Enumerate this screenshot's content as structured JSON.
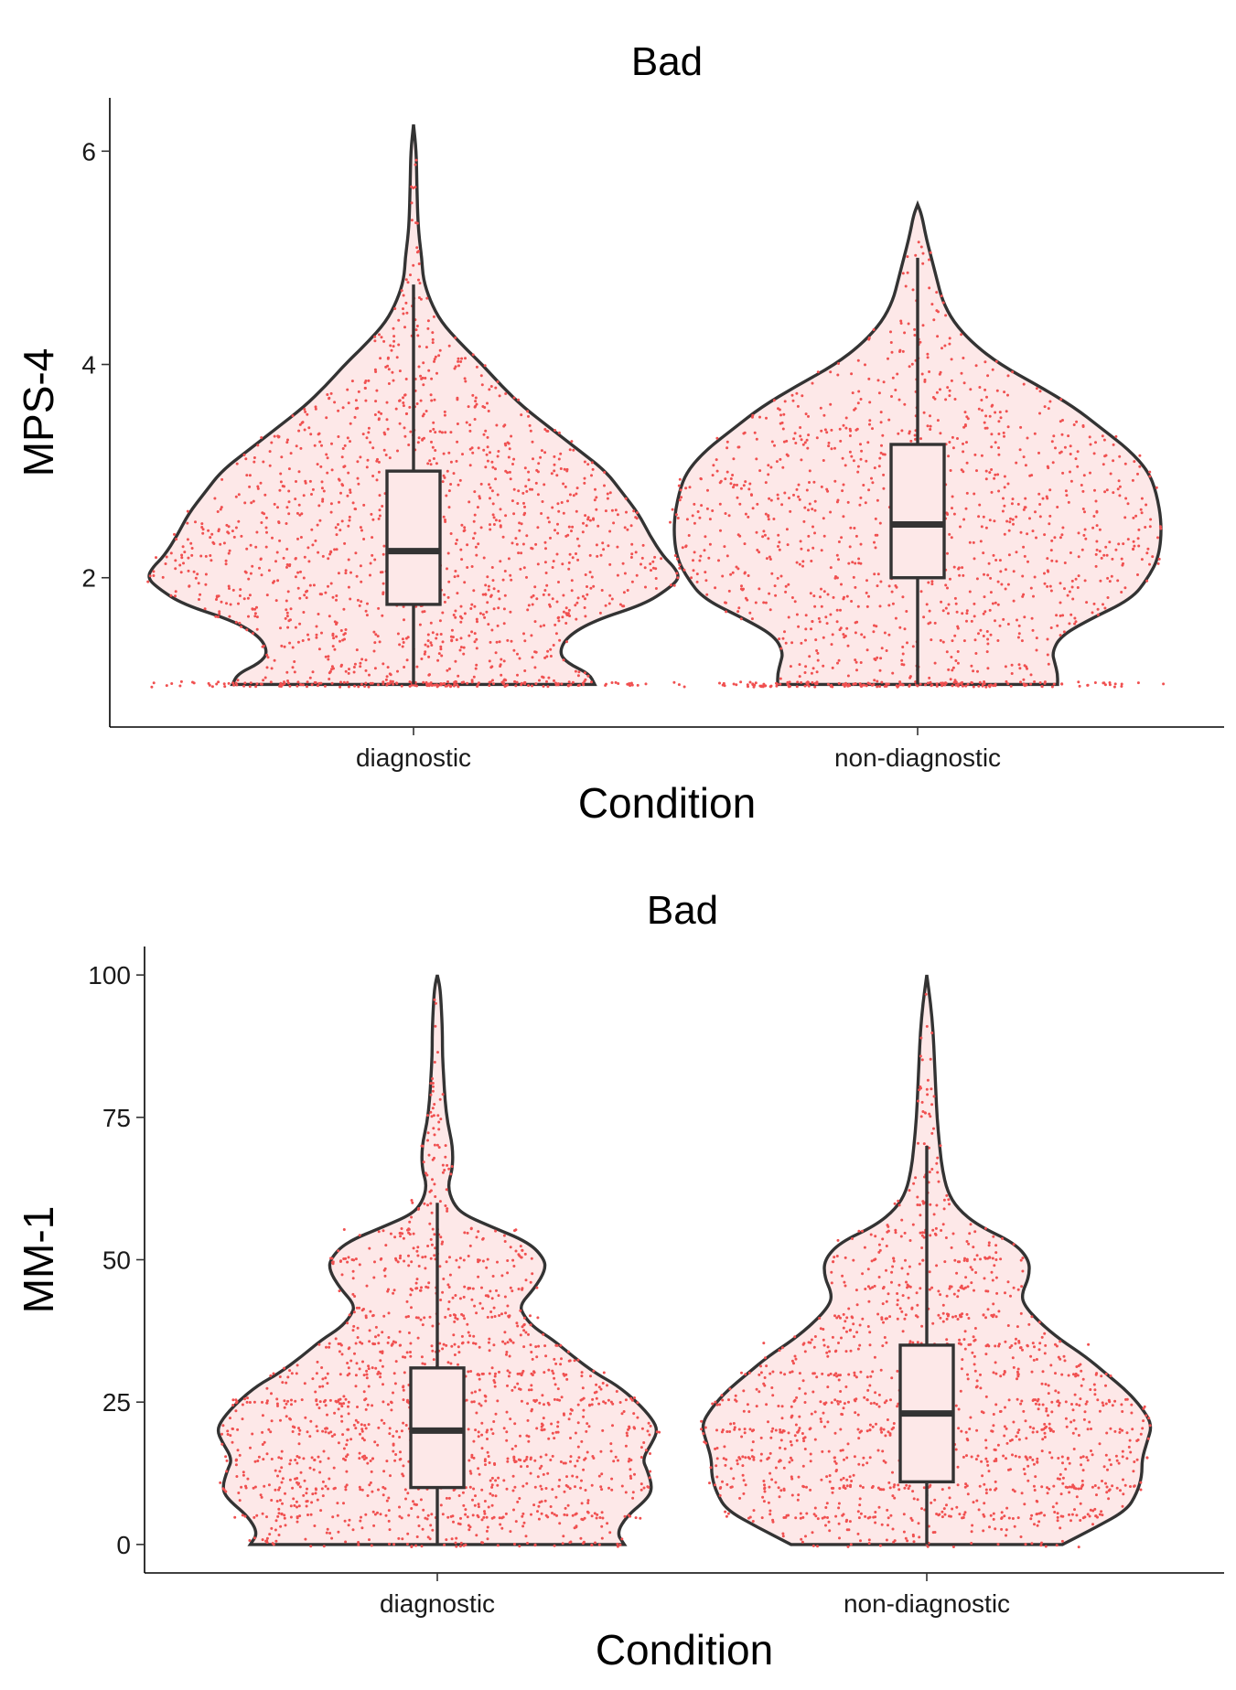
{
  "colors": {
    "violin_fill": "#fde8e8",
    "outline": "#333333",
    "points": "#f05050",
    "box_fill": "#fde8e8"
  },
  "chart_data": [
    {
      "type": "violin",
      "title": "Bad",
      "xlabel": "Condition",
      "ylabel": "MPS-4",
      "categories": [
        "diagnostic",
        "non-diagnostic"
      ],
      "ylim": [
        0.6,
        6.5
      ],
      "yticks": [
        2,
        4,
        6
      ],
      "grid": false,
      "jitter_points": true,
      "point_counts": [
        1500,
        1300
      ],
      "groups": [
        {
          "name": "diagnostic",
          "min": 1,
          "max": 6.25,
          "box": {
            "q1": 1.75,
            "median": 2.25,
            "q3": 3.0,
            "whisker_low": 1.0,
            "whisker_high": 4.75
          },
          "density": [
            [
              1.0,
              0.66
            ],
            [
              1.1,
              0.64
            ],
            [
              1.2,
              0.56
            ],
            [
              1.3,
              0.53
            ],
            [
              1.45,
              0.56
            ],
            [
              1.6,
              0.66
            ],
            [
              1.75,
              0.84
            ],
            [
              1.9,
              0.93
            ],
            [
              2.0,
              0.97
            ],
            [
              2.1,
              0.95
            ],
            [
              2.2,
              0.91
            ],
            [
              2.4,
              0.86
            ],
            [
              2.6,
              0.82
            ],
            [
              2.8,
              0.76
            ],
            [
              3.0,
              0.7
            ],
            [
              3.2,
              0.6
            ],
            [
              3.4,
              0.5
            ],
            [
              3.6,
              0.4
            ],
            [
              3.8,
              0.32
            ],
            [
              4.0,
              0.25
            ],
            [
              4.2,
              0.17
            ],
            [
              4.4,
              0.1
            ],
            [
              4.6,
              0.06
            ],
            [
              4.8,
              0.035
            ],
            [
              5.0,
              0.03
            ],
            [
              5.2,
              0.02
            ],
            [
              5.4,
              0.015
            ],
            [
              5.7,
              0.012
            ],
            [
              6.0,
              0.01
            ],
            [
              6.25,
              0.0
            ]
          ]
        },
        {
          "name": "non-diagnostic",
          "min": 1,
          "max": 5.5,
          "box": {
            "q1": 2.0,
            "median": 2.5,
            "q3": 3.25,
            "whisker_low": 1.0,
            "whisker_high": 5.0
          },
          "density": [
            [
              1.0,
              0.51
            ],
            [
              1.1,
              0.51
            ],
            [
              1.2,
              0.5
            ],
            [
              1.3,
              0.49
            ],
            [
              1.45,
              0.52
            ],
            [
              1.6,
              0.62
            ],
            [
              1.8,
              0.78
            ],
            [
              2.0,
              0.84
            ],
            [
              2.2,
              0.88
            ],
            [
              2.5,
              0.89
            ],
            [
              2.8,
              0.87
            ],
            [
              3.0,
              0.84
            ],
            [
              3.2,
              0.77
            ],
            [
              3.4,
              0.67
            ],
            [
              3.6,
              0.57
            ],
            [
              3.8,
              0.44
            ],
            [
              4.0,
              0.3
            ],
            [
              4.2,
              0.2
            ],
            [
              4.4,
              0.13
            ],
            [
              4.6,
              0.09
            ],
            [
              4.8,
              0.07
            ],
            [
              5.0,
              0.05
            ],
            [
              5.2,
              0.03
            ],
            [
              5.4,
              0.015
            ],
            [
              5.5,
              0.0
            ]
          ]
        }
      ]
    },
    {
      "type": "violin",
      "title": "Bad",
      "xlabel": "Condition",
      "ylabel": "MM-1",
      "categories": [
        "diagnostic",
        "non-diagnostic"
      ],
      "ylim": [
        -5,
        105
      ],
      "yticks": [
        0,
        25,
        50,
        75,
        100
      ],
      "grid": false,
      "jitter_points": true,
      "point_counts": [
        1500,
        1400
      ],
      "groups": [
        {
          "name": "diagnostic",
          "min": 0,
          "max": 100,
          "box": {
            "q1": 10,
            "median": 20,
            "q3": 31,
            "whisker_low": 0,
            "whisker_high": 60
          },
          "density": [
            [
              0,
              0.73
            ],
            [
              2,
              0.7
            ],
            [
              5,
              0.74
            ],
            [
              8,
              0.82
            ],
            [
              10,
              0.84
            ],
            [
              13,
              0.82
            ],
            [
              15,
              0.8
            ],
            [
              18,
              0.84
            ],
            [
              20,
              0.86
            ],
            [
              22,
              0.84
            ],
            [
              25,
              0.78
            ],
            [
              28,
              0.7
            ],
            [
              30,
              0.62
            ],
            [
              33,
              0.53
            ],
            [
              36,
              0.45
            ],
            [
              38,
              0.38
            ],
            [
              40,
              0.34
            ],
            [
              42,
              0.32
            ],
            [
              45,
              0.38
            ],
            [
              48,
              0.42
            ],
            [
              50,
              0.42
            ],
            [
              53,
              0.36
            ],
            [
              56,
              0.2
            ],
            [
              58,
              0.1
            ],
            [
              60,
              0.06
            ],
            [
              63,
              0.04
            ],
            [
              66,
              0.06
            ],
            [
              70,
              0.06
            ],
            [
              74,
              0.04
            ],
            [
              78,
              0.03
            ],
            [
              82,
              0.025
            ],
            [
              86,
              0.02
            ],
            [
              90,
              0.02
            ],
            [
              95,
              0.015
            ],
            [
              98,
              0.01
            ],
            [
              100,
              0.0
            ]
          ]
        },
        {
          "name": "non-diagnostic",
          "min": 0,
          "max": 100,
          "box": {
            "q1": 11,
            "median": 23,
            "q3": 35,
            "whisker_low": 0,
            "whisker_high": 70
          },
          "density": [
            [
              0,
              0.53
            ],
            [
              3,
              0.66
            ],
            [
              6,
              0.78
            ],
            [
              9,
              0.82
            ],
            [
              12,
              0.84
            ],
            [
              15,
              0.84
            ],
            [
              18,
              0.86
            ],
            [
              21,
              0.88
            ],
            [
              24,
              0.84
            ],
            [
              27,
              0.78
            ],
            [
              30,
              0.7
            ],
            [
              33,
              0.62
            ],
            [
              36,
              0.52
            ],
            [
              39,
              0.44
            ],
            [
              42,
              0.38
            ],
            [
              44,
              0.37
            ],
            [
              47,
              0.4
            ],
            [
              50,
              0.4
            ],
            [
              53,
              0.34
            ],
            [
              56,
              0.2
            ],
            [
              59,
              0.12
            ],
            [
              62,
              0.08
            ],
            [
              66,
              0.06
            ],
            [
              70,
              0.05
            ],
            [
              75,
              0.04
            ],
            [
              80,
              0.035
            ],
            [
              85,
              0.03
            ],
            [
              90,
              0.025
            ],
            [
              95,
              0.015
            ],
            [
              100,
              0.0
            ]
          ]
        }
      ]
    }
  ]
}
